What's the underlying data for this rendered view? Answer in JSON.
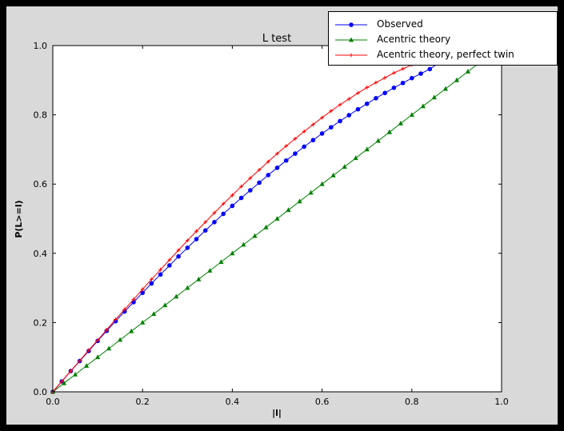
{
  "figure": {
    "frame_color": "#000000",
    "figure_bg": "#d9d9d9",
    "plot_bg": "#ffffff",
    "axes_color": "#000000"
  },
  "legend": {
    "entries": [
      {
        "label": "Observed",
        "color": "#0000ff",
        "marker": "circle"
      },
      {
        "label": "Acentric theory",
        "color": "#008000",
        "marker": "triangle"
      },
      {
        "label": "Acentric theory, perfect twin",
        "color": "#ff0000",
        "marker": "plus"
      }
    ]
  },
  "chart_data": {
    "type": "line",
    "title": "L test",
    "xlabel": "|l|",
    "ylabel": "P(L>=l)",
    "xlim": [
      0,
      1
    ],
    "ylim": [
      0,
      1
    ],
    "xticks": [
      0,
      0.2,
      0.4,
      0.6,
      0.8,
      1.0
    ],
    "yticks": [
      0,
      0.2,
      0.4,
      0.6,
      0.8,
      1.0
    ],
    "xtick_labels": [
      "0.0",
      "0.2",
      "0.4",
      "0.6",
      "0.8",
      "1.0"
    ],
    "ytick_labels": [
      "0.0",
      "0.2",
      "0.4",
      "0.6",
      "0.8",
      "1.0"
    ],
    "grid": false,
    "legend_position": "upper right, overlapping top of axes",
    "series": [
      {
        "name": "Observed",
        "color": "#0000ff",
        "marker": "circle",
        "x": [
          0,
          0.02,
          0.04,
          0.06,
          0.08,
          0.1,
          0.12,
          0.14,
          0.16,
          0.18,
          0.2,
          0.22,
          0.24,
          0.26,
          0.28,
          0.3,
          0.32,
          0.34,
          0.36,
          0.38,
          0.4,
          0.42,
          0.44,
          0.46,
          0.48,
          0.5,
          0.52,
          0.54,
          0.56,
          0.58,
          0.6,
          0.62,
          0.64,
          0.66,
          0.68,
          0.7,
          0.72,
          0.74,
          0.76,
          0.78,
          0.8,
          0.82,
          0.84,
          0.86
        ],
        "y": [
          0,
          0.03,
          0.06,
          0.089,
          0.118,
          0.147,
          0.176,
          0.204,
          0.232,
          0.259,
          0.286,
          0.313,
          0.339,
          0.365,
          0.391,
          0.416,
          0.441,
          0.466,
          0.49,
          0.514,
          0.537,
          0.56,
          0.582,
          0.604,
          0.626,
          0.647,
          0.668,
          0.688,
          0.708,
          0.727,
          0.746,
          0.764,
          0.782,
          0.799,
          0.816,
          0.832,
          0.848,
          0.863,
          0.878,
          0.892,
          0.906,
          0.919,
          0.932,
          0.95
        ]
      },
      {
        "name": "Acentric theory",
        "color": "#008000",
        "marker": "triangle",
        "x": [
          0,
          0.025,
          0.05,
          0.075,
          0.1,
          0.125,
          0.15,
          0.175,
          0.2,
          0.225,
          0.25,
          0.275,
          0.3,
          0.325,
          0.35,
          0.375,
          0.4,
          0.425,
          0.45,
          0.475,
          0.5,
          0.525,
          0.55,
          0.575,
          0.6,
          0.625,
          0.65,
          0.675,
          0.7,
          0.725,
          0.75,
          0.775,
          0.8,
          0.825,
          0.85,
          0.875,
          0.9,
          0.925,
          0.95,
          0.975
        ],
        "y": [
          0,
          0.025,
          0.05,
          0.075,
          0.1,
          0.125,
          0.15,
          0.175,
          0.2,
          0.225,
          0.25,
          0.275,
          0.3,
          0.325,
          0.35,
          0.375,
          0.4,
          0.425,
          0.45,
          0.475,
          0.5,
          0.525,
          0.55,
          0.575,
          0.6,
          0.625,
          0.65,
          0.675,
          0.7,
          0.725,
          0.75,
          0.775,
          0.8,
          0.825,
          0.85,
          0.875,
          0.9,
          0.925,
          0.95,
          0.975
        ]
      },
      {
        "name": "Acentric theory, perfect twin",
        "color": "#ff0000",
        "marker": "plus",
        "x": [
          0,
          0.02,
          0.04,
          0.06,
          0.08,
          0.1,
          0.12,
          0.14,
          0.16,
          0.18,
          0.2,
          0.22,
          0.24,
          0.26,
          0.28,
          0.3,
          0.32,
          0.34,
          0.36,
          0.38,
          0.4,
          0.42,
          0.44,
          0.46,
          0.48,
          0.5,
          0.52,
          0.54,
          0.56,
          0.58,
          0.6,
          0.62,
          0.64,
          0.66,
          0.68,
          0.7,
          0.72,
          0.74,
          0.76,
          0.78,
          0.8,
          0.82,
          0.84,
          0.86
        ],
        "y": [
          0,
          0.03,
          0.06,
          0.09,
          0.12,
          0.149,
          0.179,
          0.209,
          0.238,
          0.267,
          0.296,
          0.325,
          0.353,
          0.381,
          0.409,
          0.437,
          0.464,
          0.49,
          0.517,
          0.543,
          0.568,
          0.593,
          0.617,
          0.641,
          0.665,
          0.688,
          0.71,
          0.731,
          0.752,
          0.772,
          0.792,
          0.811,
          0.829,
          0.846,
          0.863,
          0.879,
          0.893,
          0.907,
          0.921,
          0.933,
          0.944,
          0.954,
          0.964,
          0.972
        ]
      }
    ]
  }
}
